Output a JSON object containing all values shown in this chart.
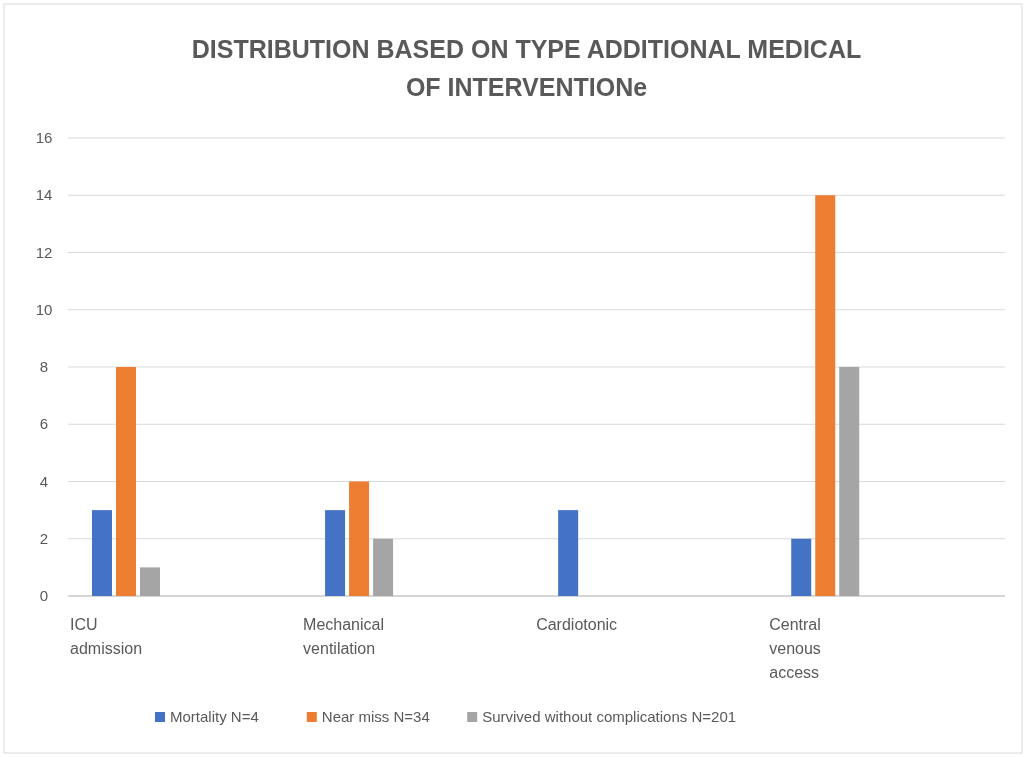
{
  "chart_data": {
    "type": "bar",
    "title": "DISTRIBUTION BASED ON TYPE ADDITIONAL MEDICAL\nOF INTERVENTIONe",
    "categories": [
      "ICU admission",
      "Mechanical ventilation",
      "Cardiotonic",
      "Central venous access"
    ],
    "series": [
      {
        "name": "Mortality N=4",
        "color": "#4472c4",
        "values": [
          3,
          3,
          3,
          2
        ]
      },
      {
        "name": "Near miss N=34",
        "color": "#ed7d31",
        "values": [
          8,
          4,
          0,
          14
        ]
      },
      {
        "name": "Survived without complications N=201",
        "color": "#a5a5a5",
        "values": [
          1,
          2,
          0,
          8
        ]
      }
    ],
    "ylim": [
      0,
      16
    ],
    "yticks": [
      0,
      2,
      4,
      6,
      8,
      10,
      12,
      14,
      16
    ],
    "grid": "y",
    "legend": "bottom"
  }
}
